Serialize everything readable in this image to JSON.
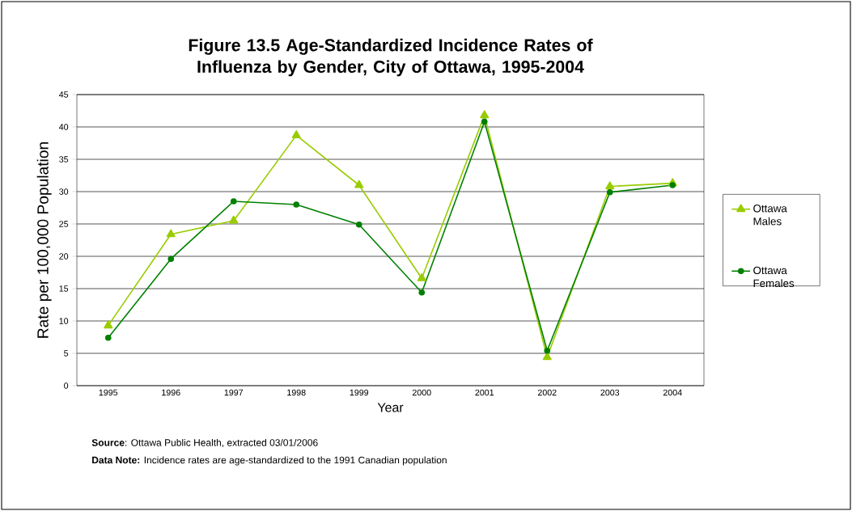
{
  "chart_data": {
    "type": "line",
    "title": "Figure 13.5 Age-Standardized Incidence Rates of Influenza by Gender, City of Ottawa, 1995-2004",
    "xlabel": "Year",
    "ylabel": "Rate per 100,000 Population",
    "categories": [
      "1995",
      "1996",
      "1997",
      "1998",
      "1999",
      "2000",
      "2001",
      "2002",
      "2003",
      "2004"
    ],
    "series": [
      {
        "name": "Ottawa Males",
        "color": "#99cc00",
        "marker": "triangle",
        "values": [
          9.3,
          23.4,
          25.5,
          38.7,
          31.0,
          16.6,
          41.8,
          4.4,
          30.8,
          31.3
        ]
      },
      {
        "name": "Ottawa Females",
        "color": "#008000",
        "marker": "circle",
        "values": [
          7.4,
          19.6,
          28.5,
          28.0,
          24.9,
          14.4,
          40.8,
          5.4,
          29.9,
          31.0
        ]
      }
    ],
    "ylim": [
      0,
      45
    ],
    "yticks": [
      0,
      5,
      10,
      15,
      20,
      25,
      30,
      35,
      40,
      45
    ],
    "grid": "y",
    "legend": "right",
    "line_style": "solid",
    "annotations": [
      "**Source**: Ottawa Public Health, extracted 03/01/2006",
      "**Data Note:** Incidence rates are age-standardized to the 1991 Canadian population"
    ]
  }
}
